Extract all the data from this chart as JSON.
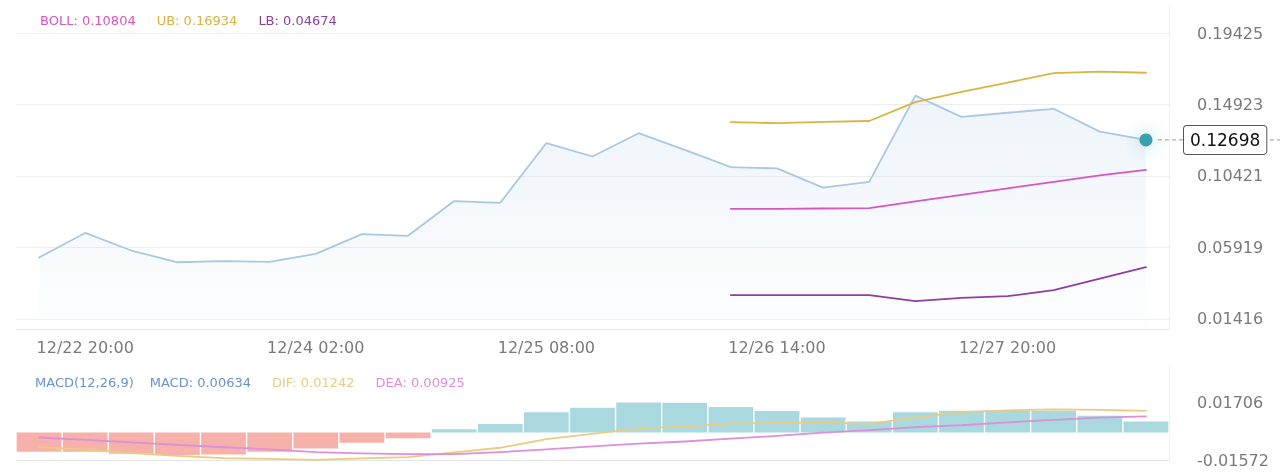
{
  "chart_data": [
    {
      "type": "line",
      "categories": [
        null,
        "12/22 20:00",
        null,
        null,
        null,
        null,
        "12/24 02:00",
        null,
        null,
        null,
        null,
        "12/25 08:00",
        null,
        null,
        null,
        null,
        "12/26 14:00",
        null,
        null,
        null,
        null,
        "12/27 20:00",
        null,
        null,
        null
      ],
      "series": [
        {
          "type": "area",
          "color": "#a9c8e6",
          "values": [
            0.0528,
            0.0683,
            0.0572,
            0.0498,
            0.0505,
            0.05,
            0.0551,
            0.0675,
            0.0665,
            0.0884,
            0.0873,
            0.125,
            0.1165,
            0.1312,
            0.1207,
            0.1098,
            0.109,
            0.0969,
            0.1005,
            0.1549,
            0.1415,
            0.1441,
            0.1466,
            0.1322,
            0.12698
          ]
        },
        {
          "name": "BOLL: 0.10804",
          "color": "#d856c2",
          "values": [
            null,
            null,
            null,
            null,
            null,
            null,
            null,
            null,
            null,
            null,
            null,
            null,
            null,
            null,
            null,
            0.0835,
            0.0835,
            0.0837,
            0.084,
            0.0882,
            0.0923,
            0.0964,
            0.1005,
            0.1046,
            0.10804
          ]
        },
        {
          "name": "UB: 0.16934",
          "color": "#d8b443",
          "values": [
            null,
            null,
            null,
            null,
            null,
            null,
            null,
            null,
            null,
            null,
            null,
            null,
            null,
            null,
            null,
            0.1382,
            0.1376,
            0.1384,
            0.1389,
            0.1508,
            0.1572,
            0.1631,
            0.1691,
            0.1701,
            0.16934
          ]
        },
        {
          "name": "LB: 0.04674",
          "color": "#8e3f9e",
          "values": [
            null,
            null,
            null,
            null,
            null,
            null,
            null,
            null,
            null,
            null,
            null,
            null,
            null,
            null,
            null,
            0.0291,
            0.0291,
            0.0291,
            0.0291,
            0.0253,
            0.0273,
            0.0284,
            0.0322,
            0.0394,
            0.04674
          ]
        }
      ],
      "ylim": [
        0.0077,
        0.2108
      ],
      "yticks": [
        0.01416,
        0.05919,
        0.10421,
        0.14923,
        0.19425
      ],
      "grid": "y",
      "legend": "top left",
      "marker": "none",
      "ref_lines": [
        {
          "axis": "y",
          "value": 0.12698,
          "label": "0.12698",
          "line_style": "dashed"
        }
      ]
    },
    {
      "type": "bar",
      "title": "MACD(12,26,9)",
      "annotations": [
        "MACD: 0.00634"
      ],
      "categories": [
        null,
        null,
        null,
        null,
        null,
        null,
        null,
        null,
        null,
        null,
        null,
        null,
        null,
        null,
        null,
        null,
        null,
        null,
        null,
        null,
        null,
        null,
        null,
        null,
        null
      ],
      "series": [
        {
          "colors": [
            "#f5b1aa",
            "#f5b1aa",
            "#f5b1aa",
            "#f5b1aa",
            "#f5b1aa",
            "#f5b1aa",
            "#f5b1aa",
            "#f5b1aa",
            "#f5b1aa",
            "#a9d9df",
            "#a9d9df",
            "#a9d9df",
            "#a9d9df",
            "#a9d9df",
            "#a9d9df",
            "#a9d9df",
            "#a9d9df",
            "#a9d9df",
            "#a9d9df",
            "#a9d9df",
            "#a9d9df",
            "#a9d9df",
            "#a9d9df",
            "#a9d9df",
            "#a9d9df"
          ],
          "values": [
            -0.011,
            -0.011,
            -0.0121,
            -0.0128,
            -0.0126,
            -0.011,
            -0.0091,
            -0.0058,
            -0.0033,
            0.0019,
            0.0049,
            0.0117,
            0.0143,
            0.0173,
            0.0171,
            0.0147,
            0.0124,
            0.0086,
            0.0063,
            0.0117,
            0.0126,
            0.0128,
            0.0126,
            0.0096,
            0.00634
          ]
        },
        {
          "name": "DIF: 0.01242",
          "type": "line",
          "color": "#e9cc82",
          "values": [
            -0.0083,
            -0.0097,
            -0.0117,
            -0.0134,
            -0.0147,
            -0.0151,
            -0.0156,
            -0.0148,
            -0.0141,
            -0.0114,
            -0.0087,
            -0.0037,
            -0.0007,
            0.0024,
            0.0034,
            0.0053,
            0.0055,
            0.0057,
            0.005,
            0.0087,
            0.0117,
            0.0128,
            0.0133,
            0.013,
            0.01242
          ]
        },
        {
          "name": "DEA: 0.00925",
          "type": "line",
          "color": "#dc8fda",
          "values": [
            -0.0028,
            -0.0042,
            -0.0056,
            -0.007,
            -0.0084,
            -0.0096,
            -0.0112,
            -0.0119,
            -0.0124,
            -0.0124,
            -0.0112,
            -0.0096,
            -0.0079,
            -0.0063,
            -0.0051,
            -0.0035,
            -0.0019,
            0,
            0.0014,
            0.0031,
            0.0042,
            0.0059,
            0.0073,
            0.0086,
            0.00925
          ]
        }
      ],
      "ylim": [
        -0.01572,
        0.0382
      ],
      "yticks": [
        -0.01572,
        0.01706
      ],
      "grid": false,
      "legend": "top left",
      "marker": "none"
    }
  ]
}
